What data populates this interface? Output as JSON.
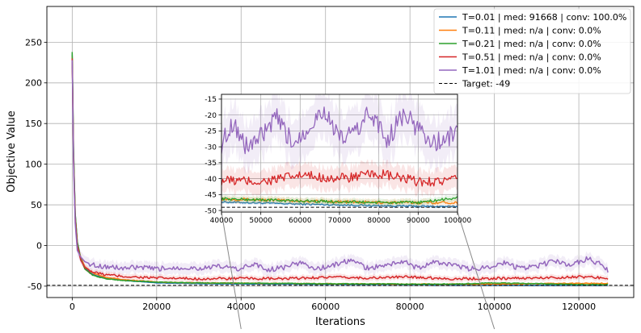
{
  "chart_data": {
    "type": "line",
    "xlabel": "Iterations",
    "ylabel": "Objective Value",
    "xlim": [
      -6000,
      133000
    ],
    "ylim": [
      -64,
      294
    ],
    "xticks": [
      0,
      20000,
      40000,
      60000,
      80000,
      100000,
      120000
    ],
    "xtick_labels": [
      "0",
      "20000",
      "40000",
      "60000",
      "80000",
      "100000",
      "120000"
    ],
    "yticks": [
      -50,
      0,
      50,
      100,
      150,
      200,
      250
    ],
    "ytick_labels": [
      "-50",
      "0",
      "50",
      "100",
      "150",
      "200",
      "250"
    ],
    "grid": true,
    "legend_position": "top-right",
    "target": {
      "value": -49,
      "label": "Target: -49",
      "color": "#000000",
      "style": "dashed"
    },
    "series": [
      {
        "name": "T=0.01 | med: 91668 | conv: 100.0%",
        "color": "#1f77b4",
        "x": [
          0,
          300,
          700,
          1200,
          2000,
          3000,
          5000,
          8000,
          12000,
          20000,
          30000,
          45000,
          60000,
          80000,
          100000,
          115000,
          127000
        ],
        "y": [
          235,
          120,
          40,
          5,
          -15,
          -28,
          -36,
          -40,
          -43,
          -46,
          -47,
          -47.5,
          -48,
          -48.5,
          -48.8,
          -49,
          -49
        ]
      },
      {
        "name": "T=0.11 | med: n/a | conv: 0.0%",
        "color": "#ff7f0e",
        "x": [
          0,
          300,
          700,
          1200,
          2000,
          3000,
          5000,
          8000,
          12000,
          20000,
          30000,
          45000,
          60000,
          80000,
          100000,
          110000,
          120000,
          127000
        ],
        "y": [
          233,
          118,
          38,
          3,
          -14,
          -26,
          -34,
          -39,
          -42,
          -45,
          -46,
          -46.5,
          -47,
          -47.5,
          -47.5,
          -47,
          -46.5,
          -46.5
        ]
      },
      {
        "name": "T=0.21 | med: n/a | conv: 0.0%",
        "color": "#2ca02c",
        "x": [
          0,
          300,
          700,
          1200,
          2000,
          3000,
          5000,
          8000,
          12000,
          20000,
          30000,
          45000,
          60000,
          80000,
          90000,
          100000,
          110000,
          120000,
          127000
        ],
        "y": [
          238,
          122,
          40,
          4,
          -16,
          -29,
          -37,
          -41,
          -43,
          -45,
          -46,
          -46.5,
          -47,
          -47.5,
          -47.5,
          -46,
          -47,
          -48,
          -48
        ]
      },
      {
        "name": "T=0.51 | med: n/a | conv: 0.0%",
        "color": "#d62728",
        "x": [
          0,
          300,
          700,
          1200,
          2000,
          3000,
          5000,
          8000,
          12000,
          20000,
          30000,
          40000,
          50000,
          60000,
          70000,
          80000,
          90000,
          100000,
          110000,
          120000,
          127000
        ],
        "y": [
          230,
          110,
          34,
          0,
          -18,
          -27,
          -33,
          -36,
          -38,
          -40,
          -41,
          -40.5,
          -41,
          -39,
          -40,
          -38.5,
          -41,
          -40.5,
          -40,
          -38.5,
          -40
        ]
      },
      {
        "name": "T=1.01 | med: n/a | conv: 0.0%",
        "color": "#9467bd",
        "x": [
          0,
          300,
          700,
          1200,
          2000,
          3000,
          5000,
          8000,
          12000,
          16000,
          20000,
          25000,
          30000,
          35000,
          40000,
          43000,
          46000,
          50000,
          54000,
          58000,
          62000,
          66000,
          70000,
          74000,
          78000,
          82000,
          86000,
          90000,
          94000,
          98000,
          102000,
          106000,
          110000,
          114000,
          118000,
          122000,
          125000,
          127000
        ],
        "y": [
          228,
          105,
          28,
          -6,
          -14,
          -20,
          -24,
          -26,
          -28,
          -27,
          -29,
          -27,
          -28,
          -26,
          -29,
          -22,
          -30,
          -27,
          -21,
          -29,
          -24,
          -18,
          -28,
          -25,
          -19,
          -28,
          -20,
          -24,
          -29,
          -27,
          -21,
          -28,
          -26,
          -19,
          -24,
          -16,
          -23,
          -31
        ]
      }
    ],
    "inset": {
      "xlim": [
        40000,
        100000
      ],
      "ylim": [
        -50.5,
        -13.5
      ],
      "xticks": [
        40000,
        50000,
        60000,
        70000,
        80000,
        90000,
        100000
      ],
      "xtick_labels": [
        "40000",
        "50000",
        "60000",
        "70000",
        "80000",
        "90000",
        "100000"
      ],
      "yticks": [
        -50,
        -45,
        -40,
        -35,
        -30,
        -25,
        -20,
        -15
      ],
      "ytick_labels": [
        "-50",
        "-45",
        "-40",
        "-35",
        "-30",
        "-25",
        "-20",
        "-15"
      ],
      "grid": true
    }
  }
}
